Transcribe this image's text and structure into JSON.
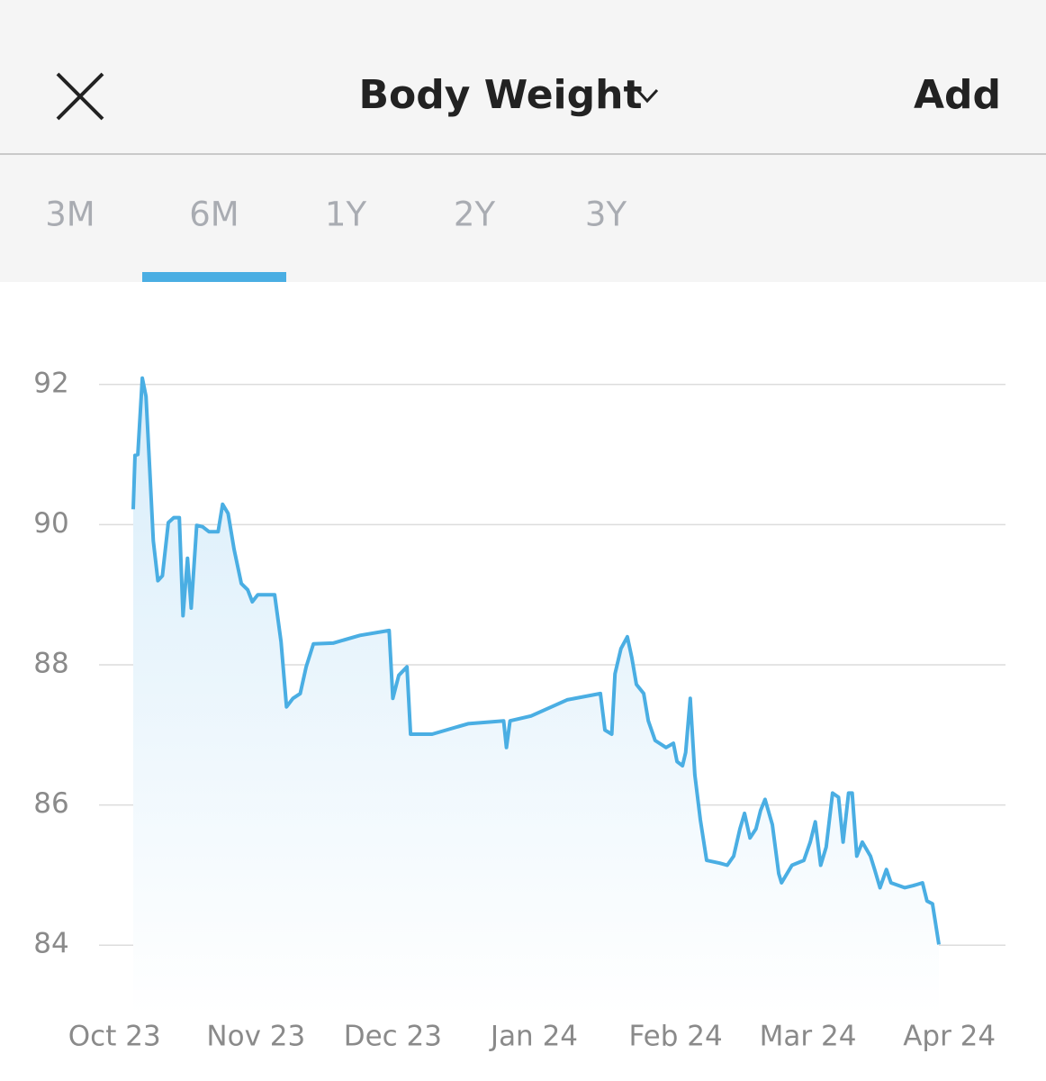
{
  "header": {
    "title": "Body Weight",
    "action": "Add"
  },
  "tabs": {
    "items": [
      "3M",
      "6M",
      "1Y",
      "2Y",
      "3Y"
    ],
    "selected": 1
  },
  "chart_data": {
    "type": "area",
    "color": "#4aaee3",
    "grid": true,
    "x": [
      4.1,
      4.5,
      5.1,
      6.1,
      6.9,
      7.7,
      8.5,
      9.5,
      10.5,
      11.8,
      13.0,
      14.2,
      15.0,
      16.0,
      16.8,
      18.0,
      19.3,
      20.7,
      22.7,
      23.7,
      24.9,
      26.2,
      27.8,
      29.2,
      30.2,
      31.4,
      35.1,
      36.5,
      37.7,
      39.1,
      40.7,
      42.0,
      43.6,
      47.9,
      53.8,
      60.2,
      61.0,
      62.3,
      64.1,
      64.9,
      69.6,
      77.5,
      85.3,
      85.9,
      86.7,
      91.3,
      99.2,
      106.5,
      107.5,
      109.0,
      109.7,
      111.0,
      112.4,
      113.4,
      114.4,
      116.0,
      117.0,
      118.5,
      120.9,
      122.5,
      123.3,
      124.5,
      125.2,
      126.2,
      127.2,
      128.4,
      129.8,
      132.7,
      134.3,
      135.7,
      137.1,
      138.1,
      139.3,
      140.6,
      141.6,
      142.6,
      144.2,
      145.6,
      146.2,
      148.5,
      151.1,
      152.5,
      153.6,
      154.8,
      156.0,
      157.4,
      158.7,
      159.7,
      160.9,
      161.7,
      162.7,
      163.9,
      165.7,
      166.6,
      167.8,
      169.2,
      170.2,
      173.2,
      175.1,
      177.1,
      178.1,
      179.3,
      180.7
    ],
    "values": [
      90.22,
      90.99,
      91.0,
      92.09,
      91.83,
      90.8,
      89.77,
      89.2,
      89.27,
      90.03,
      90.1,
      90.1,
      88.7,
      89.52,
      88.81,
      89.99,
      89.97,
      89.9,
      89.9,
      90.29,
      90.16,
      89.65,
      89.16,
      89.07,
      88.9,
      89.0,
      89.0,
      88.33,
      87.4,
      87.52,
      87.59,
      87.97,
      88.3,
      88.31,
      88.42,
      88.49,
      87.52,
      87.85,
      87.97,
      87.01,
      87.01,
      87.16,
      87.2,
      86.82,
      87.2,
      87.27,
      87.5,
      87.59,
      87.07,
      87.01,
      87.87,
      88.23,
      88.4,
      88.1,
      87.72,
      87.59,
      87.2,
      86.92,
      86.82,
      86.88,
      86.62,
      86.56,
      86.75,
      87.52,
      86.43,
      85.79,
      85.21,
      85.17,
      85.14,
      85.27,
      85.66,
      85.88,
      85.53,
      85.66,
      85.92,
      86.08,
      85.72,
      85.02,
      84.89,
      85.14,
      85.21,
      85.47,
      85.76,
      85.14,
      85.4,
      86.17,
      86.11,
      85.47,
      86.17,
      86.17,
      85.27,
      85.47,
      85.27,
      85.08,
      84.82,
      85.08,
      84.89,
      84.82,
      84.85,
      84.89,
      84.63,
      84.59,
      84.01
    ],
    "xlim": [
      -3.4,
      195.3
    ],
    "ylim": [
      83,
      93
    ],
    "xticks": [
      {
        "value": 0,
        "label": "Oct 23"
      },
      {
        "value": 31,
        "label": "Nov 23"
      },
      {
        "value": 61,
        "label": "Dec 23"
      },
      {
        "value": 92,
        "label": "Jan 24"
      },
      {
        "value": 123,
        "label": "Feb 24"
      },
      {
        "value": 152,
        "label": "Mar 24"
      },
      {
        "value": 183,
        "label": "Apr 24"
      }
    ],
    "yticks": [
      84,
      86,
      88,
      90,
      92
    ]
  }
}
